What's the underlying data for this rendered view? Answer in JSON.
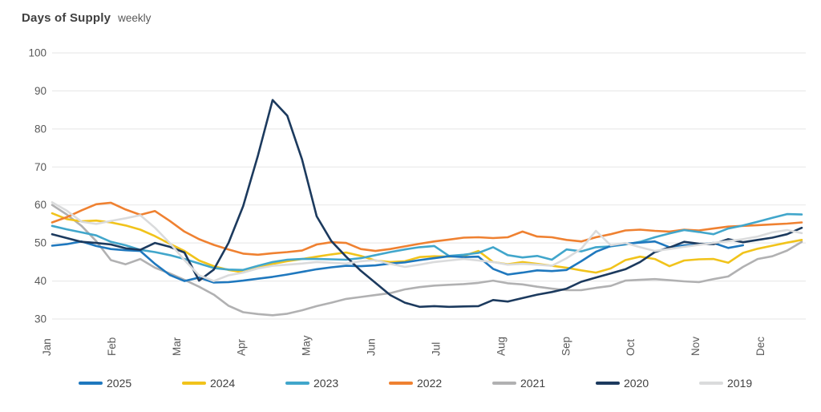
{
  "header": {
    "title": "Days of Supply",
    "subtitle": "weekly"
  },
  "chart_data": {
    "type": "line",
    "title": "Days of Supply",
    "subtitle": "weekly",
    "x_unit": "week",
    "x_axis_labels": [
      "Jan",
      "Feb",
      "Mar",
      "Apr",
      "May",
      "Jun",
      "Jul",
      "Aug",
      "Sep",
      "Oct",
      "Nov",
      "Dec"
    ],
    "y_axis": {
      "ticks": [
        100,
        90,
        80,
        70,
        60,
        50,
        40,
        30
      ],
      "min": 30,
      "max": 100
    },
    "grid": "horizontal",
    "legend_position": "bottom",
    "draw_order": [
      "2021",
      "2024",
      "2022",
      "2023",
      "2025",
      "2020",
      "2019"
    ],
    "series": [
      {
        "name": "2025",
        "color": "#1F78BE",
        "values": [
          49.3,
          49.7,
          50.4,
          49.2,
          48.4,
          48.1,
          47.9,
          44.5,
          41.6,
          40.0,
          40.9,
          39.6,
          39.7,
          40.1,
          40.6,
          41.1,
          41.7,
          42.4,
          43.1,
          43.6,
          44.0,
          43.9,
          44.1,
          44.6,
          44.9,
          45.5,
          46.0,
          46.5,
          46.3,
          46.4,
          43.2,
          41.7,
          42.2,
          42.8,
          42.6,
          42.9,
          45.2,
          47.7,
          49.2,
          49.8,
          50.1,
          50.4,
          48.9,
          49.4,
          49.6,
          50.0,
          48.7,
          49.4
        ]
      },
      {
        "name": "2024",
        "color": "#F1C31B",
        "values": [
          57.8,
          56.3,
          55.7,
          55.9,
          55.4,
          54.6,
          53.5,
          51.8,
          49.8,
          47.9,
          45.4,
          43.9,
          42.9,
          42.3,
          43.4,
          44.5,
          45.2,
          45.8,
          46.4,
          47.0,
          47.5,
          46.6,
          45.4,
          45.0,
          45.2,
          46.3,
          46.5,
          46.4,
          46.6,
          47.9,
          45.0,
          44.4,
          45.0,
          44.5,
          44.0,
          43.5,
          42.8,
          42.2,
          43.3,
          45.5,
          46.4,
          45.8,
          43.9,
          45.4,
          45.7,
          45.8,
          44.8,
          47.4,
          48.5,
          49.3,
          50.1,
          50.8
        ]
      },
      {
        "name": "2023",
        "color": "#41A6CB",
        "values": [
          54.5,
          53.6,
          52.8,
          52.0,
          50.3,
          49.4,
          48.2,
          47.6,
          46.8,
          45.8,
          44.6,
          43.4,
          43.0,
          42.9,
          44.0,
          45.0,
          45.6,
          45.8,
          45.8,
          45.7,
          45.6,
          46.0,
          46.8,
          47.6,
          48.3,
          48.9,
          49.2,
          46.6,
          46.9,
          47.4,
          48.9,
          46.8,
          46.2,
          46.6,
          45.6,
          48.3,
          47.8,
          48.9,
          49.1,
          49.6,
          50.3,
          51.5,
          52.5,
          53.4,
          52.9,
          52.3,
          53.8,
          54.6,
          55.6,
          56.6,
          57.6,
          57.5
        ]
      },
      {
        "name": "2022",
        "color": "#EF8131",
        "values": [
          55.4,
          56.8,
          58.6,
          60.2,
          60.6,
          58.8,
          57.4,
          58.4,
          55.8,
          53.0,
          51.0,
          49.5,
          48.3,
          47.2,
          46.9,
          47.3,
          47.6,
          48.0,
          49.6,
          50.2,
          50.0,
          48.4,
          47.9,
          48.4,
          49.1,
          49.8,
          50.4,
          50.9,
          51.4,
          51.5,
          51.3,
          51.5,
          53.0,
          51.7,
          51.5,
          50.8,
          50.4,
          51.5,
          52.3,
          53.3,
          53.5,
          53.2,
          53.0,
          53.5,
          53.3,
          53.8,
          54.3,
          54.5,
          54.7,
          54.9,
          55.1,
          55.4
        ]
      },
      {
        "name": "2021",
        "color": "#B1B1B2",
        "values": [
          60.0,
          57.5,
          54.5,
          50.5,
          45.5,
          44.4,
          45.8,
          43.5,
          42.0,
          40.3,
          38.5,
          36.4,
          33.5,
          31.8,
          31.3,
          31.0,
          31.4,
          32.3,
          33.4,
          34.3,
          35.3,
          35.8,
          36.3,
          36.8,
          37.8,
          38.4,
          38.8,
          39.0,
          39.2,
          39.5,
          40.1,
          39.4,
          39.1,
          38.5,
          38.0,
          37.6,
          37.6,
          38.2,
          38.7,
          40.1,
          40.3,
          40.5,
          40.2,
          39.9,
          39.7,
          40.5,
          41.2,
          43.7,
          45.8,
          46.5,
          48.0,
          50.3
        ]
      },
      {
        "name": "2020",
        "color": "#1C3A5E",
        "values": [
          52.3,
          51.3,
          50.3,
          50.0,
          49.6,
          48.6,
          48.2,
          50.0,
          49.0,
          47.5,
          40.1,
          43.0,
          50.0,
          59.7,
          73.0,
          87.6,
          83.5,
          72.0,
          57.0,
          50.5,
          46.4,
          42.7,
          39.5,
          36.3,
          34.3,
          33.2,
          33.4,
          33.2,
          33.3,
          33.4,
          35.0,
          34.6,
          35.5,
          36.4,
          37.1,
          38.0,
          39.8,
          40.9,
          42.0,
          43.1,
          45.0,
          47.6,
          48.8,
          50.3,
          49.8,
          49.7,
          51.0,
          50.2,
          50.8,
          51.4,
          52.3,
          54.0
        ]
      },
      {
        "name": "2019",
        "color": "#DADBDC",
        "values": [
          60.7,
          58.5,
          55.6,
          55.0,
          55.8,
          56.5,
          57.3,
          54.0,
          50.0,
          45.5,
          41.5,
          40.0,
          41.5,
          42.2,
          43.3,
          44.0,
          44.3,
          44.6,
          45.0,
          44.8,
          44.6,
          45.2,
          45.5,
          44.5,
          43.7,
          44.3,
          45.0,
          45.4,
          45.8,
          45.4,
          45.0,
          44.3,
          44.5,
          44.3,
          44.0,
          46.0,
          48.5,
          53.2,
          49.4,
          50.0,
          48.9,
          47.9,
          48.4,
          49.0,
          49.5,
          50.0,
          50.5,
          51.0,
          51.7,
          52.8,
          53.4,
          52.6
        ]
      }
    ]
  }
}
